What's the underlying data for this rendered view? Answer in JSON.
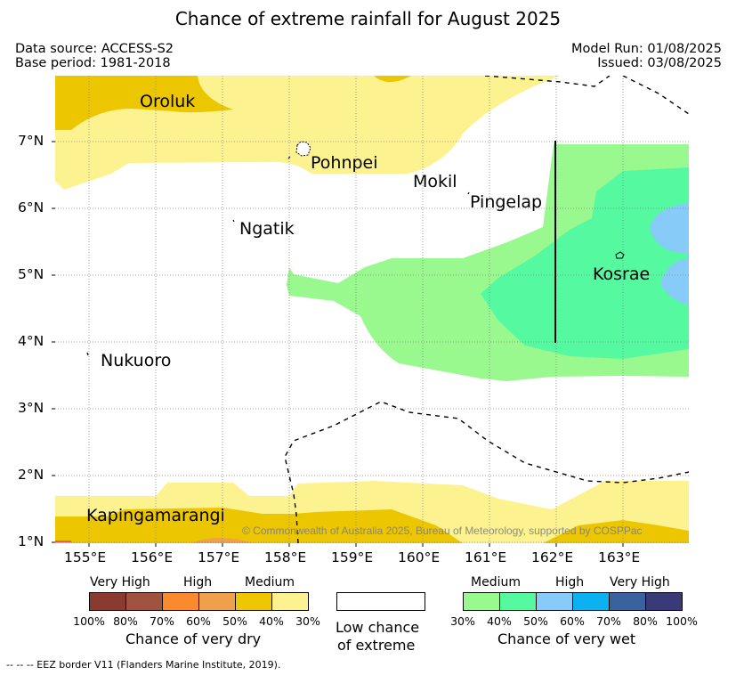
{
  "title": "Chance of extreme rainfall for August 2025",
  "data_source": "Data source: ACCESS-S2",
  "base_period": "Base period: 1981-2018",
  "model_run": "Model Run: 01/08/2025",
  "issued": "Issued: 03/08/2025",
  "axes": {
    "lat_ticks": [
      "1°N",
      "2°N",
      "3°N",
      "4°N",
      "5°N",
      "6°N",
      "7°N"
    ],
    "lon_ticks": [
      "155°E",
      "156°E",
      "157°E",
      "158°E",
      "159°E",
      "160°E",
      "161°E",
      "162°E",
      "163°E"
    ]
  },
  "places": {
    "oroluk": "Oroluk",
    "pohnpei": "Pohnpei",
    "mokil": "Mokil",
    "pingelap": "Pingelap",
    "ngatik": "Ngatik",
    "kosrae": "Kosrae",
    "nukuoro": "Nukuoro",
    "kapingamarangi": "Kapingamarangi"
  },
  "copyright": "© Commonwealth of Australia 2025, Bureau of Meteorology, supported by COSPPac",
  "legend": {
    "dry": {
      "groups": [
        "Very High",
        "High",
        "Medium"
      ],
      "pcts": [
        "100%",
        "80%",
        "70%",
        "60%",
        "50%",
        "40%",
        "30%"
      ],
      "title": "Chance of very dry",
      "colors": [
        "#8b3a2f",
        "#a0533e",
        "#f98a2e",
        "#eea04a",
        "#ecc600",
        "#fcf28f"
      ]
    },
    "neutral": {
      "line1": "Low chance",
      "line2": "of extreme"
    },
    "wet": {
      "groups": [
        "Medium",
        "High",
        "Very High"
      ],
      "pcts": [
        "30%",
        "40%",
        "50%",
        "60%",
        "70%",
        "80%",
        "100%"
      ],
      "title": "Chance of very wet",
      "colors": [
        "#99f98f",
        "#55f9a0",
        "#87cbf9",
        "#0cb2f0",
        "#39629f",
        "#3a3a78"
      ]
    }
  },
  "footnote": "--  --  -- EEZ border V11 (Flanders Marine Institute, 2019)."
}
